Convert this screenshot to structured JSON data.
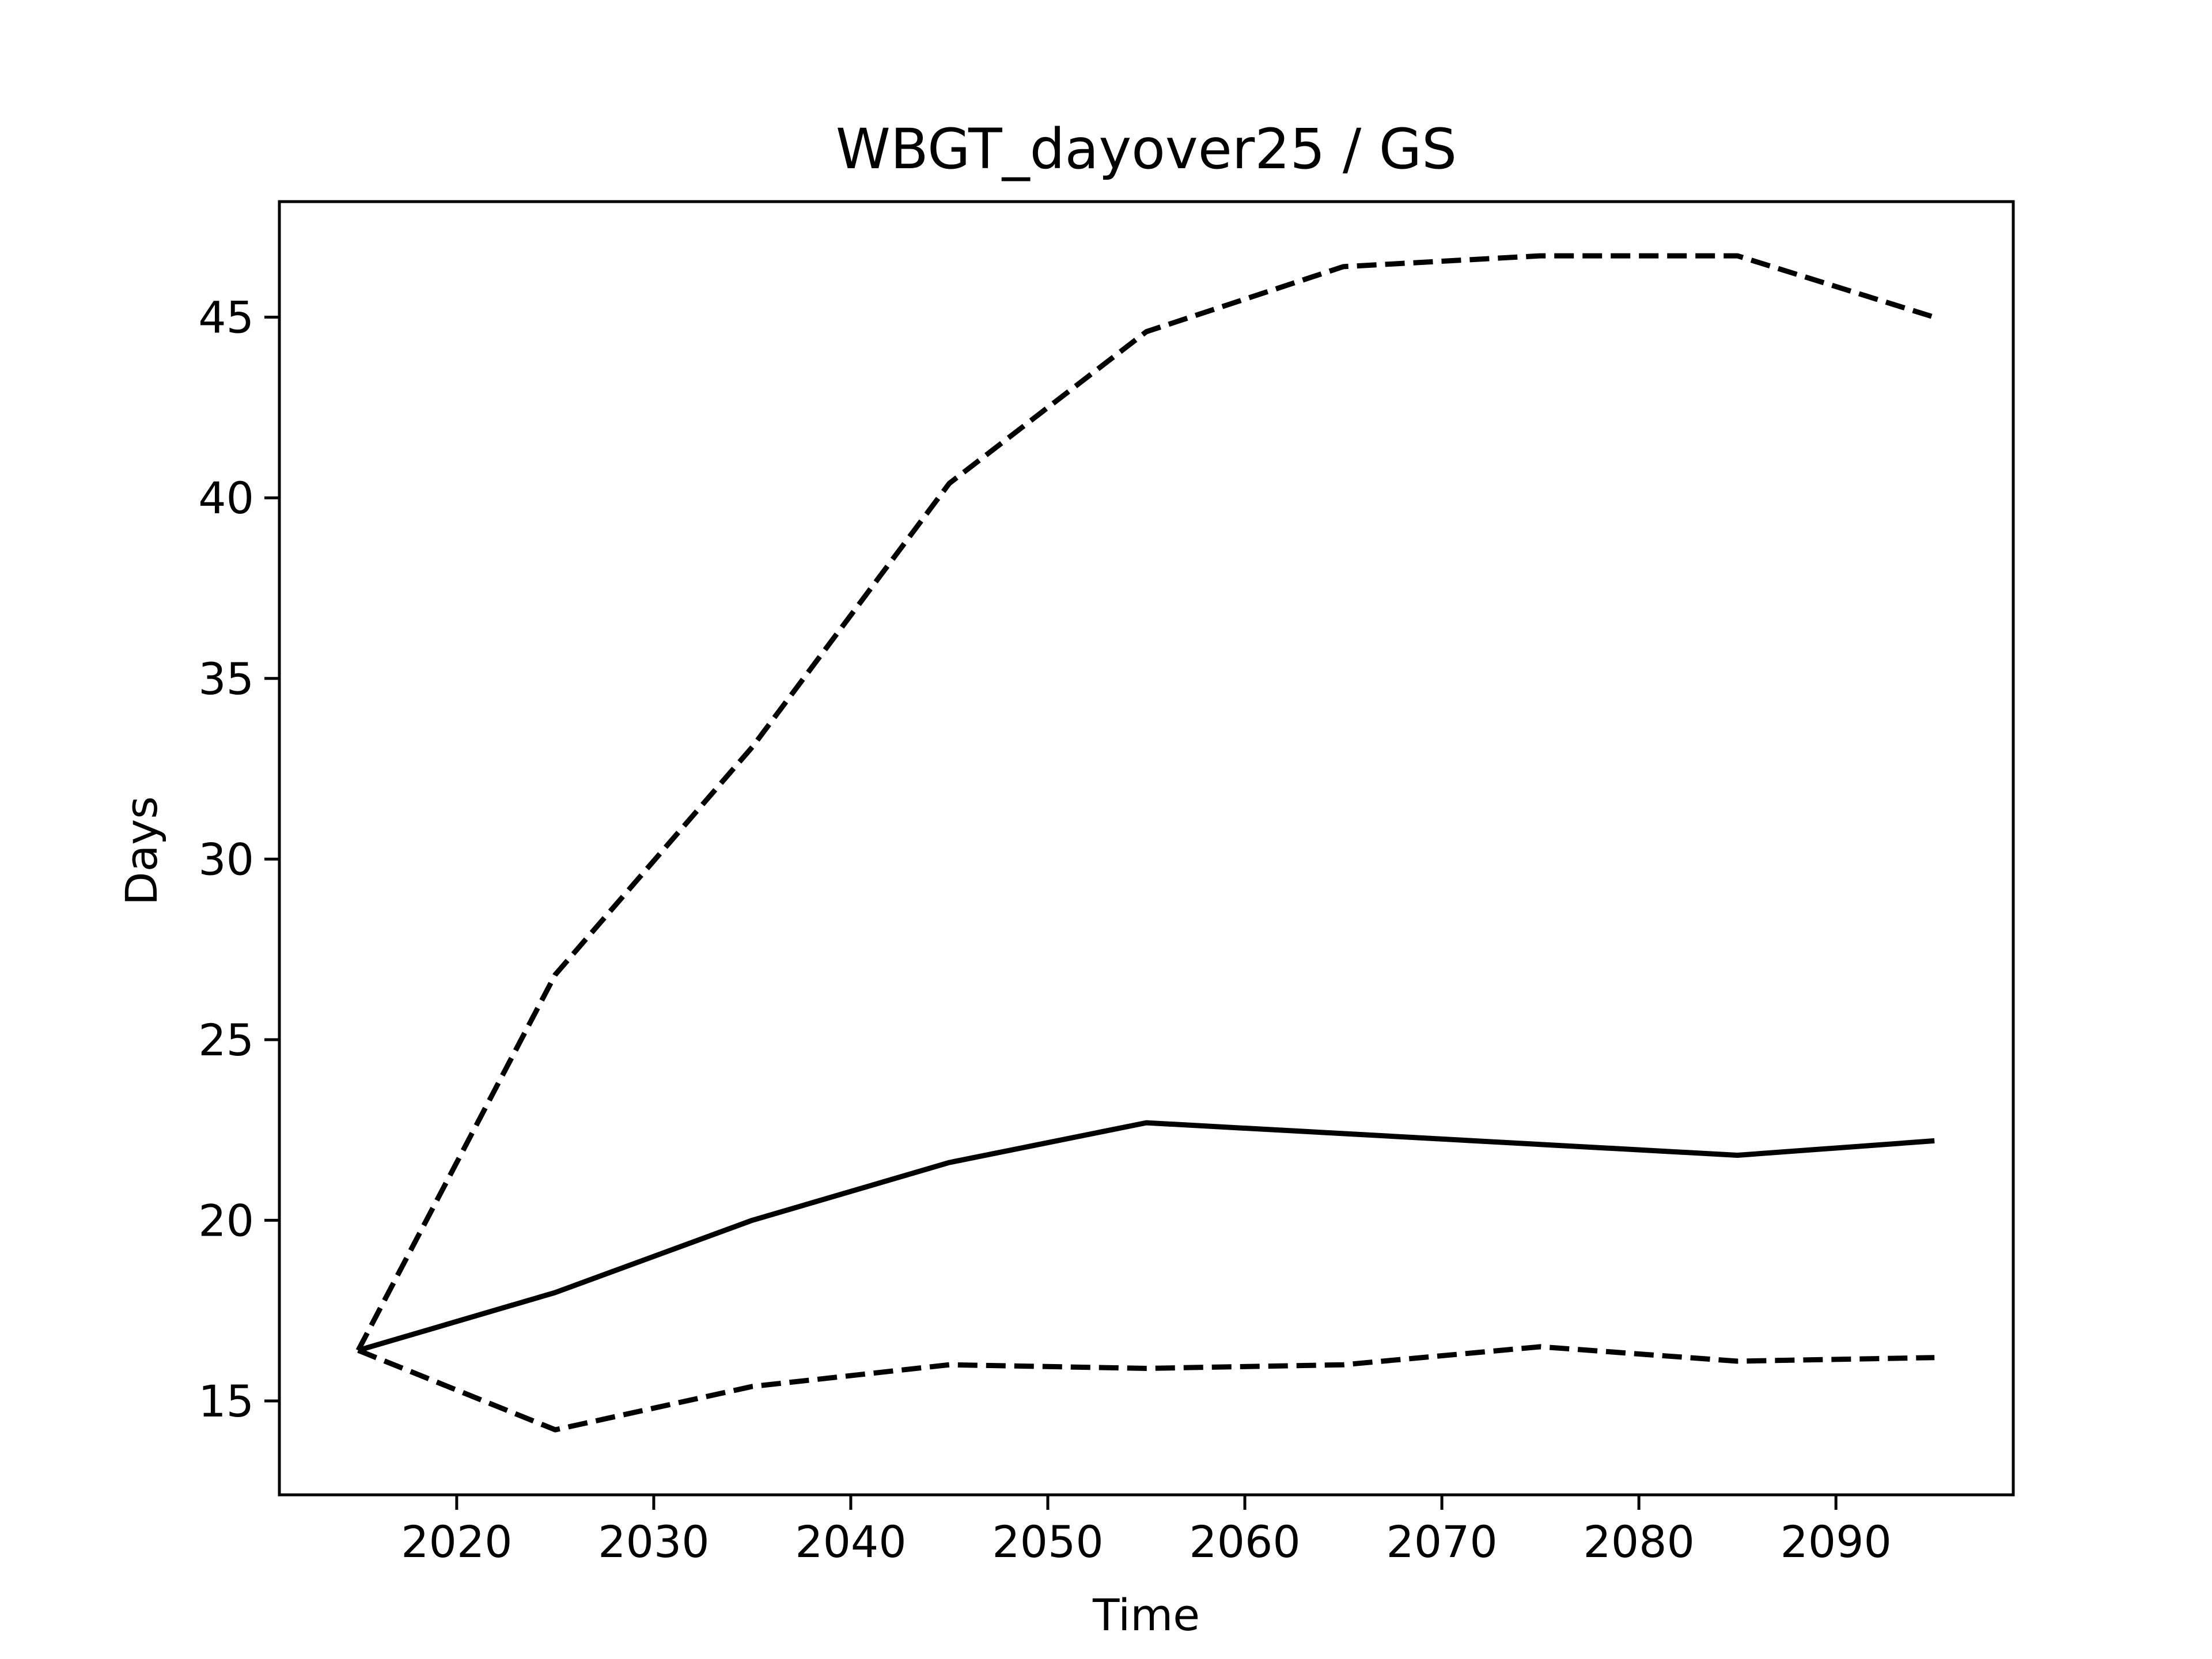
{
  "chart_data": {
    "type": "line",
    "title": "WBGT_dayover25 / GS",
    "xlabel": "Time",
    "ylabel": "Days",
    "xlim": [
      2011,
      2099
    ],
    "ylim": [
      12.4,
      48.2
    ],
    "xticks": [
      2020,
      2030,
      2040,
      2050,
      2060,
      2070,
      2080,
      2090
    ],
    "yticks": [
      15,
      20,
      25,
      30,
      35,
      40,
      45
    ],
    "grid": false,
    "x": [
      2015,
      2025,
      2035,
      2045,
      2055,
      2065,
      2075,
      2085,
      2095
    ],
    "series": [
      {
        "style": "solid",
        "color": "#000000",
        "values": [
          16.4,
          18.0,
          20.0,
          21.6,
          22.7,
          22.4,
          22.1,
          21.8,
          22.2
        ]
      },
      {
        "style": "dashed",
        "color": "#000000",
        "values": [
          16.4,
          26.8,
          33.1,
          40.4,
          44.6,
          46.4,
          46.7,
          46.7,
          45.0
        ]
      },
      {
        "style": "dashed",
        "color": "#000000",
        "values": [
          16.4,
          14.2,
          15.4,
          16.0,
          15.9,
          16.0,
          16.5,
          16.1,
          16.2
        ]
      }
    ]
  }
}
